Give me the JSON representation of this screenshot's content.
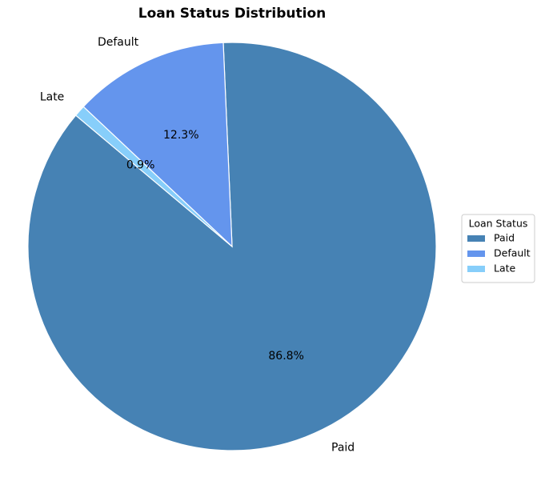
{
  "chart_data": {
    "type": "pie",
    "title": "Loan Status Distribution",
    "categories": [
      "Paid",
      "Default",
      "Late"
    ],
    "values": [
      86.8,
      12.3,
      0.9
    ],
    "value_labels": [
      "86.8%",
      "12.3%",
      "0.9%"
    ],
    "colors": [
      "#4682b4",
      "#6495ed",
      "#87cefa"
    ],
    "startangle": 140,
    "legend_title": "Loan Status",
    "legend": "right"
  }
}
